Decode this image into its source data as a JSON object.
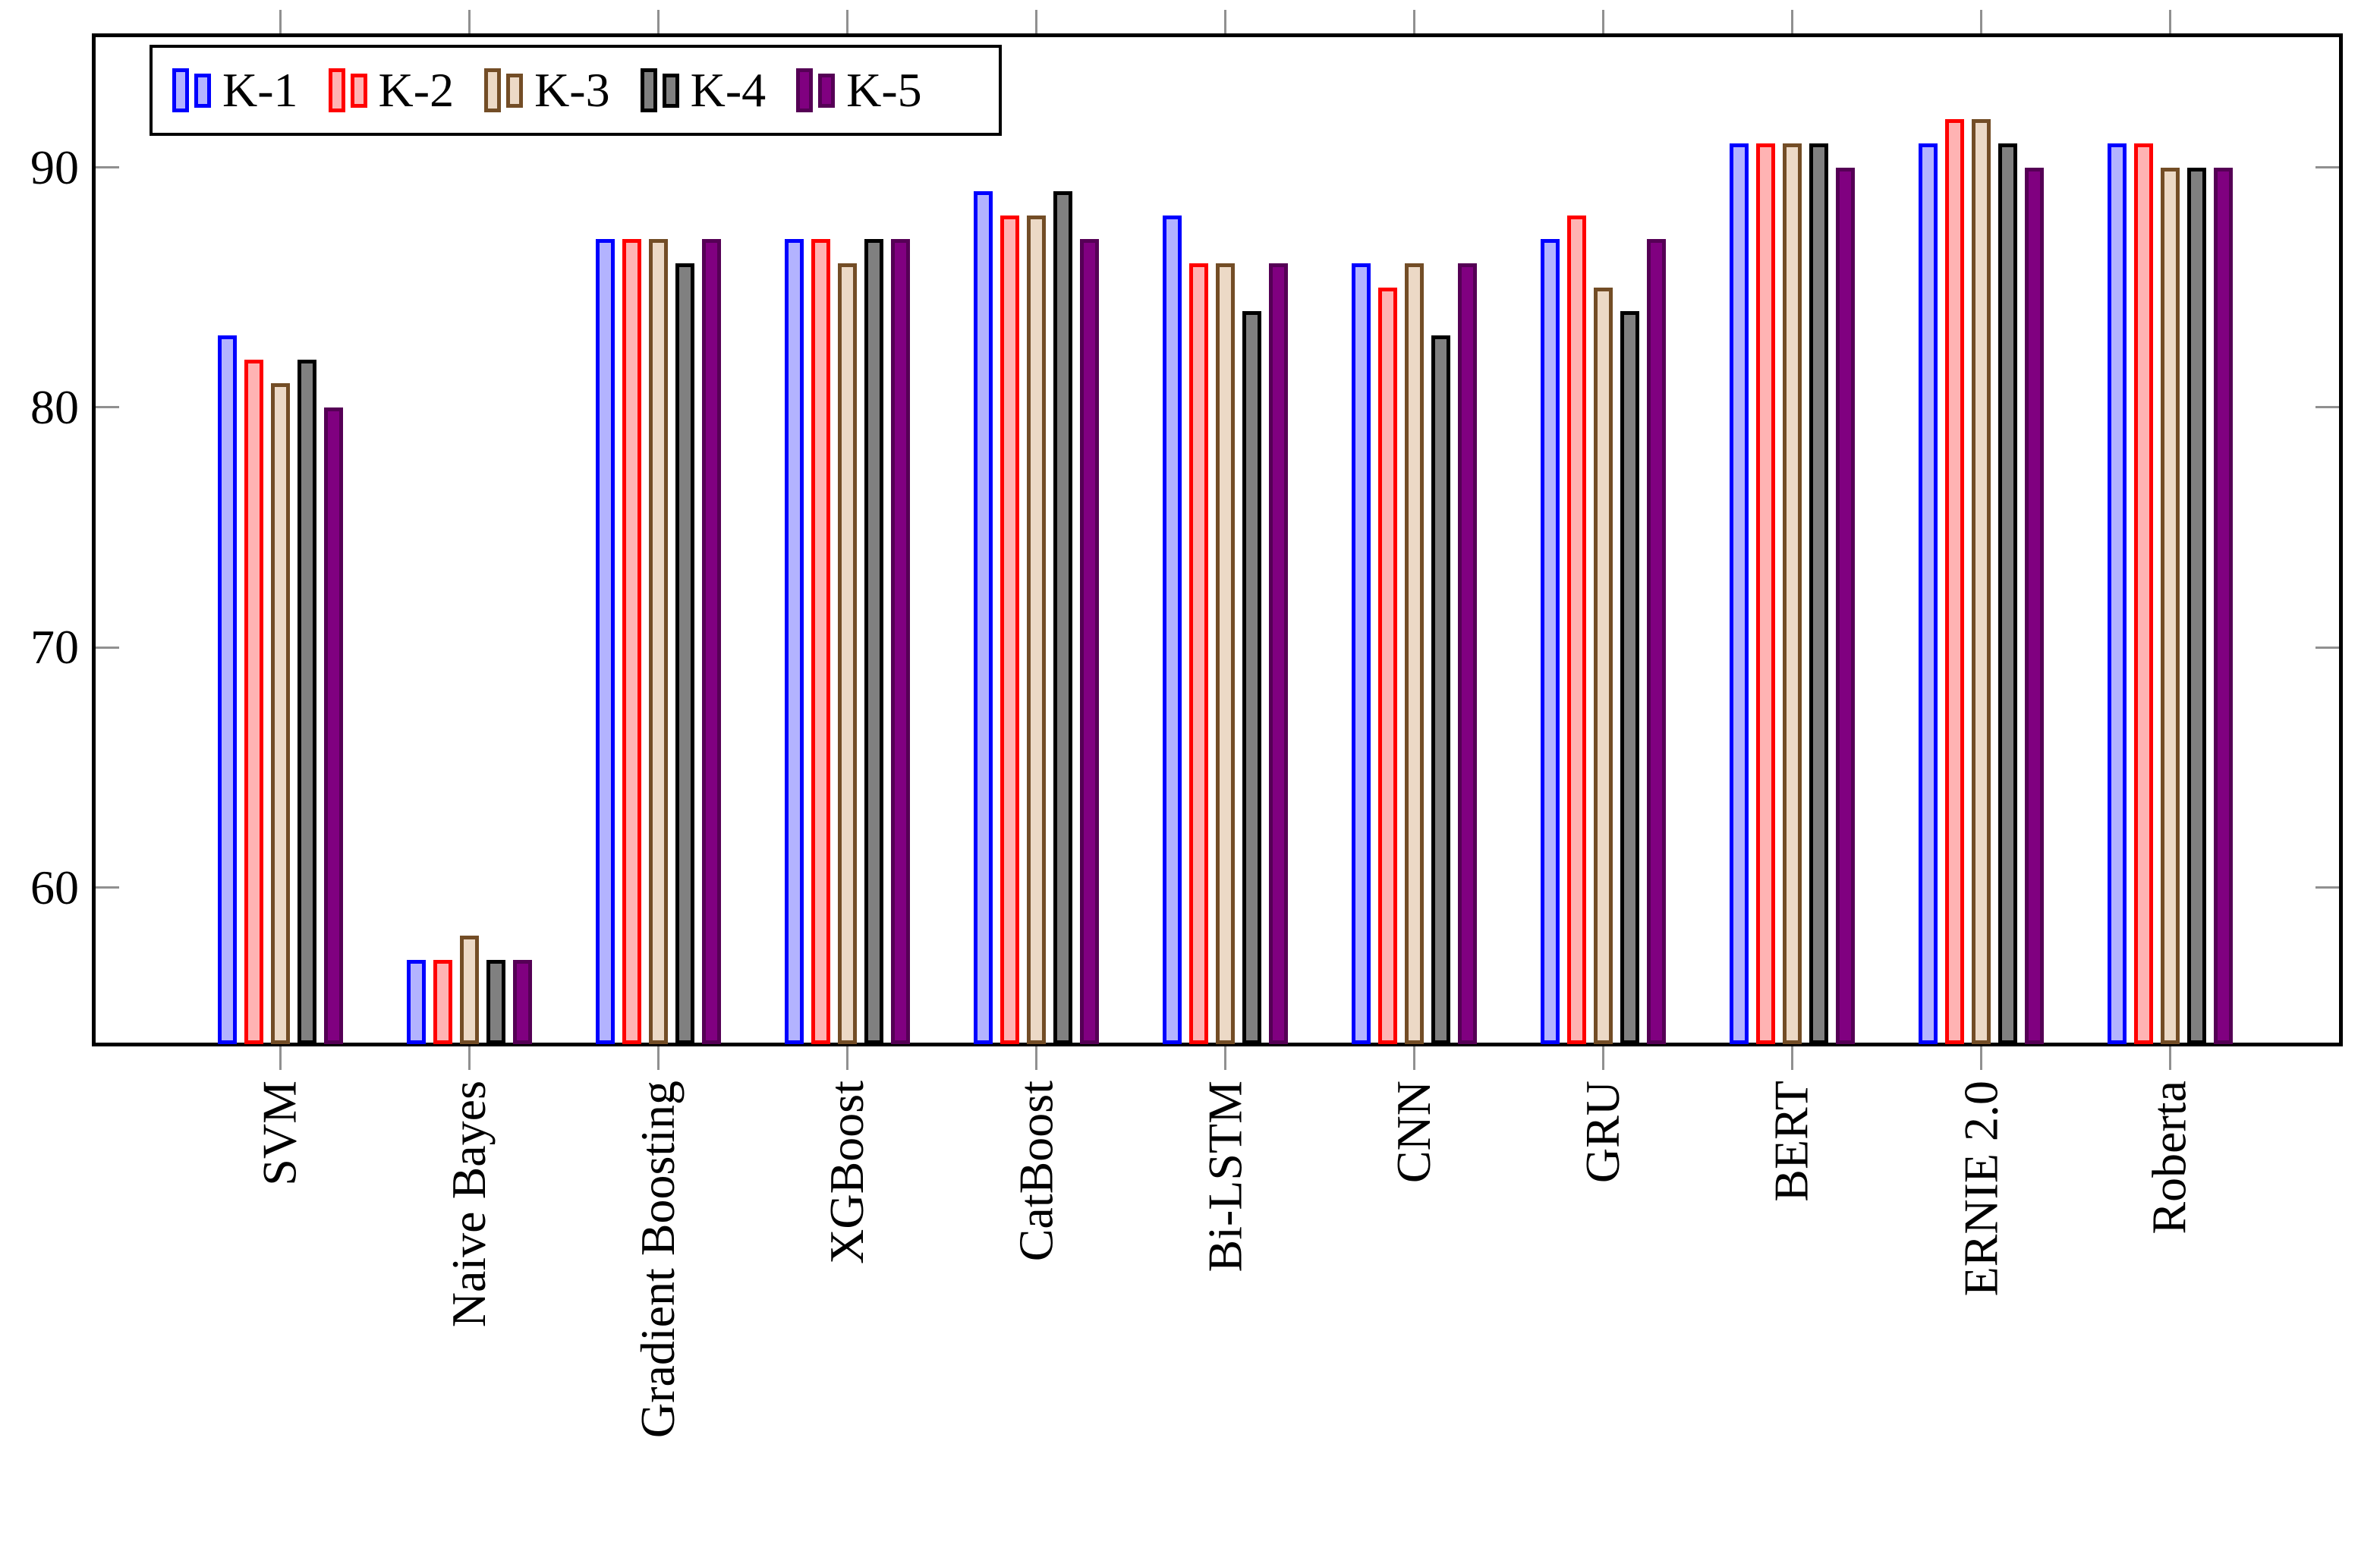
{
  "chart_data": {
    "type": "bar",
    "title": "",
    "xlabel": "",
    "ylabel": "",
    "grid": false,
    "legend_position": "top-left-inside",
    "ylim": [
      53.5,
      95.5
    ],
    "yticks": [
      60,
      70,
      80,
      90
    ],
    "categories": [
      "SVM",
      "Naive Bayes",
      "Gradient Boosting",
      "XGBoost",
      "CatBoost",
      "Bi-LSTM",
      "CNN",
      "GRU",
      "BERT",
      "ERNIE 2.0",
      "Roberta"
    ],
    "series": [
      {
        "name": "K-1",
        "fill": "#B3B3FF",
        "border": "#0000FF",
        "values": [
          83,
          57,
          87,
          87,
          89,
          88,
          86,
          87,
          91,
          91,
          91
        ]
      },
      {
        "name": "K-2",
        "fill": "#FFB3B3",
        "border": "#FF0000",
        "values": [
          82,
          57,
          87,
          87,
          88,
          86,
          85,
          88,
          91,
          92,
          91
        ]
      },
      {
        "name": "K-3",
        "fill": "#ECD9C6",
        "border": "#734D26",
        "values": [
          81,
          58,
          87,
          86,
          88,
          86,
          86,
          85,
          91,
          92,
          90
        ]
      },
      {
        "name": "K-4",
        "fill": "#808080",
        "border": "#000000",
        "values": [
          82,
          57,
          86,
          87,
          89,
          84,
          83,
          84,
          91,
          91,
          90
        ]
      },
      {
        "name": "K-5",
        "fill": "#800080",
        "border": "#550055",
        "values": [
          80,
          57,
          87,
          87,
          87,
          86,
          86,
          87,
          90,
          90,
          90
        ]
      }
    ],
    "colors": {
      "axis": "#000000",
      "tick": "#909090",
      "background": "#FFFFFF"
    }
  }
}
